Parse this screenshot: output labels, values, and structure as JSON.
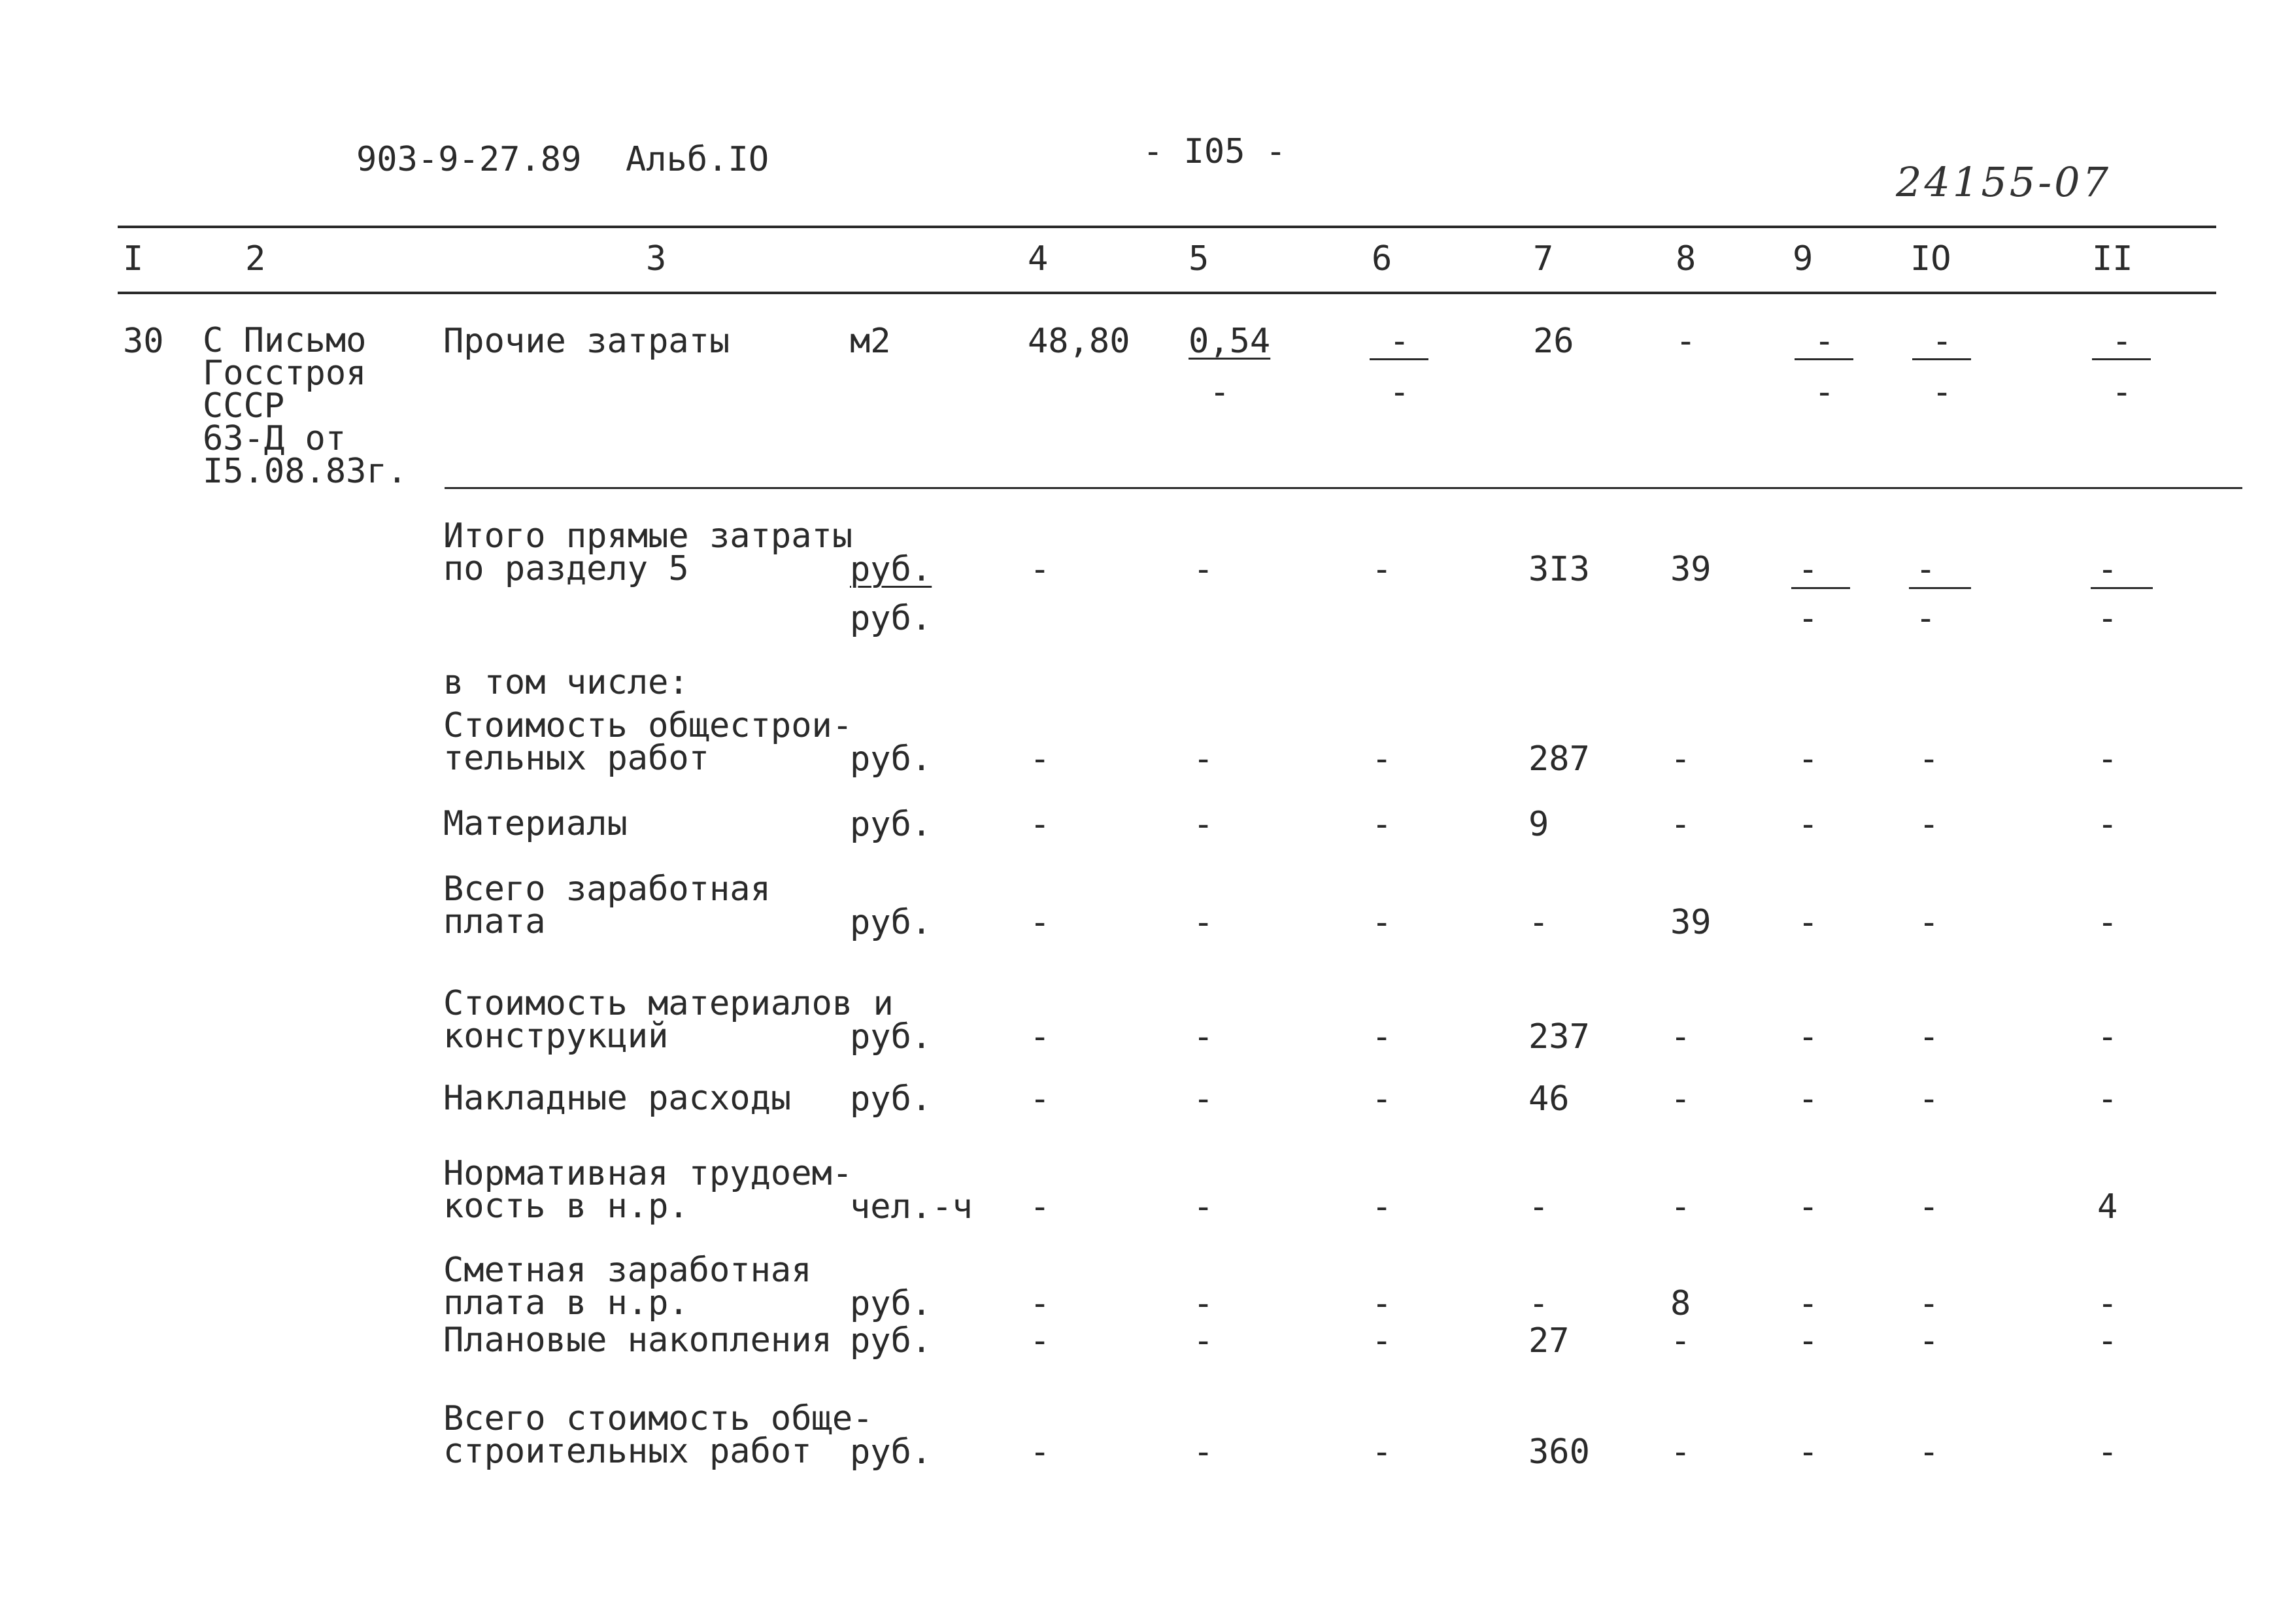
{
  "header": {
    "doc_code": "903-9-27.89",
    "album": "Альб.IO",
    "page": "- I05 -",
    "handwritten_number": "24155-07"
  },
  "columns": [
    "I",
    "2",
    "3",
    "4",
    "5",
    "6",
    "7",
    "8",
    "9",
    "IO",
    "II"
  ],
  "item": {
    "number": "30",
    "basis": "С Письмо\nГосстроя\nСССР\n63-Д от\nI5.08.83г.",
    "name": "Прочие затраты",
    "unit": "м2",
    "c4": "48,80",
    "c5": "0,54",
    "c5_lower": "-",
    "c6": "-",
    "c6_lower": "-",
    "c7": "26",
    "c8": "-",
    "c9": "-",
    "c9_lower": "-",
    "c10": "-",
    "c10_lower": "-",
    "c11": "-",
    "c11_lower": "-"
  },
  "total": {
    "label": "Итого прямые затраты\nпо разделу 5",
    "unit": "руб.",
    "unit2": "руб.",
    "c4": "-",
    "c5": "-",
    "c6": "-",
    "c7": "3I3",
    "c8": "39",
    "c9": "-",
    "c9_lower": "-",
    "c10": "-",
    "c10_lower": "-",
    "c11": "-",
    "c11_lower": "-"
  },
  "including": "в том числе:",
  "rows": [
    {
      "label": "Стоимость общестрои-\nтельных работ",
      "unit": "руб.",
      "c4": "-",
      "c5": "-",
      "c6": "-",
      "c7": "287",
      "c8": "-",
      "c9": "-",
      "c10": "-",
      "c11": "-"
    },
    {
      "label": "Материалы",
      "unit": "руб.",
      "c4": "-",
      "c5": "-",
      "c6": "-",
      "c7": "9",
      "c8": "-",
      "c9": "-",
      "c10": "-",
      "c11": "-"
    },
    {
      "label": "Всего заработная\nплата",
      "unit": "руб.",
      "c4": "-",
      "c5": "-",
      "c6": "-",
      "c7": "-",
      "c8": "39",
      "c9": "-",
      "c10": "-",
      "c11": "-"
    },
    {
      "label": "Стоимость материалов и\nконструкций",
      "unit": "руб.",
      "c4": "-",
      "c5": "-",
      "c6": "-",
      "c7": "237",
      "c8": "-",
      "c9": "-",
      "c10": "-",
      "c11": "-"
    },
    {
      "label": "Накладные расходы",
      "unit": "руб.",
      "c4": "-",
      "c5": "-",
      "c6": "-",
      "c7": "46",
      "c8": "-",
      "c9": "-",
      "c10": "-",
      "c11": "-"
    },
    {
      "label": "Нормативная трудоем-\nкость в н.р.",
      "unit": "чел.-ч",
      "c4": "-",
      "c5": "-",
      "c6": "-",
      "c7": "-",
      "c8": "-",
      "c9": "-",
      "c10": "-",
      "c11": "4"
    },
    {
      "label": "Сметная заработная\nплата в н.р.",
      "unit": "руб.",
      "c4": "-",
      "c5": "-",
      "c6": "-",
      "c7": "-",
      "c8": "8",
      "c9": "-",
      "c10": "-",
      "c11": "-"
    },
    {
      "label": "Плановые накопления",
      "unit": "руб.",
      "c4": "-",
      "c5": "-",
      "c6": "-",
      "c7": "27",
      "c8": "-",
      "c9": "-",
      "c10": "-",
      "c11": "-"
    },
    {
      "label": "Всего стоимость обще-\nстроительных работ",
      "unit": "руб.",
      "c4": "-",
      "c5": "-",
      "c6": "-",
      "c7": "360",
      "c8": "-",
      "c9": "-",
      "c10": "-",
      "c11": "-"
    }
  ]
}
